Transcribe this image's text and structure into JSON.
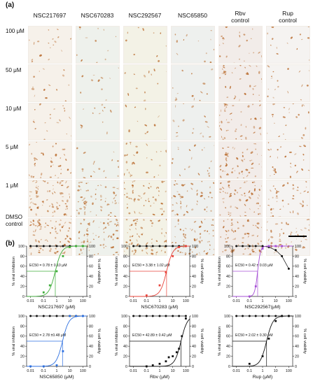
{
  "figure": {
    "panel_a_label": "(a)",
    "panel_b_label": "(b)",
    "columns": [
      {
        "label": "NSC217697",
        "line2": ""
      },
      {
        "label": "NSC670283",
        "line2": ""
      },
      {
        "label": "NSC292567",
        "line2": ""
      },
      {
        "label": "NSC65850",
        "line2": ""
      },
      {
        "label": "Rbv",
        "line2": "control"
      },
      {
        "label": "Rup",
        "line2": "control"
      }
    ],
    "rows": [
      {
        "label": "100 μM",
        "line2": ""
      },
      {
        "label": "50 μM",
        "line2": ""
      },
      {
        "label": "10 μM",
        "line2": ""
      },
      {
        "label": "5 μM",
        "line2": ""
      },
      {
        "label": "1 μM",
        "line2": ""
      },
      {
        "label": "DMSO",
        "line2": "control"
      }
    ],
    "cell_density": [
      [
        0.15,
        0.08,
        0.05,
        0.08,
        0.25,
        0.12
      ],
      [
        0.12,
        0.05,
        0.08,
        0.1,
        0.4,
        0.18
      ],
      [
        0.2,
        0.12,
        0.08,
        0.15,
        0.55,
        0.25
      ],
      [
        0.45,
        0.15,
        0.3,
        0.2,
        0.65,
        0.35
      ],
      [
        0.95,
        0.8,
        0.7,
        0.6,
        0.8,
        0.55
      ],
      [
        1.0,
        0.9,
        0.85,
        0.85,
        0.9,
        0.6
      ]
    ],
    "colors": {
      "cell_stain": "#b8692a",
      "background_tint": "#f3ece4",
      "green": "#3fae3a",
      "red": "#e8433a",
      "purple": "#a64fd6",
      "blue": "#2c6fe0",
      "black": "#111111"
    }
  },
  "chart_data": [
    {
      "type": "scatter",
      "xlabel": "NSC217697 (μM)",
      "ylabel": "% viral inhibition",
      "y2label": "% cell viability",
      "x_scale": "log",
      "xticks": [
        "0.01",
        "0.1",
        "1",
        "10",
        "100"
      ],
      "yticks": [
        "0",
        "20",
        "40",
        "60",
        "80",
        "100"
      ],
      "ylim": [
        0,
        100
      ],
      "annotation": "EC50 = 0.78 ± 0.10 μM",
      "color": "#3fae3a",
      "ec50": 0.78,
      "inhibition": {
        "x": [
          0.1,
          0.3,
          1,
          3,
          10,
          30,
          100
        ],
        "y": [
          8,
          22,
          50,
          80,
          98,
          100,
          100
        ]
      },
      "viability": {
        "x": [
          0.01,
          0.03,
          0.1,
          0.3,
          1,
          3,
          10,
          30,
          100
        ],
        "y": [
          100,
          100,
          100,
          100,
          100,
          100,
          100,
          100,
          100
        ]
      }
    },
    {
      "type": "scatter",
      "xlabel": "NSC670283 (μM)",
      "ylabel": "% viral inhibition",
      "y2label": "% cell viability",
      "x_scale": "log",
      "xticks": [
        "0.01",
        "0.1",
        "1",
        "10",
        "100"
      ],
      "yticks": [
        "0",
        "20",
        "40",
        "60",
        "80",
        "100"
      ],
      "ylim": [
        0,
        100
      ],
      "annotation": "EC50 = 3.38 ± 1.02 μM",
      "color": "#e8433a",
      "ec50": 3.38,
      "inhibition": {
        "x": [
          0.1,
          1,
          3,
          10,
          30,
          100
        ],
        "y": [
          2,
          22,
          48,
          80,
          98,
          100
        ]
      },
      "viability": {
        "x": [
          0.01,
          0.03,
          0.1,
          0.3,
          1,
          3,
          10,
          30,
          100
        ],
        "y": [
          100,
          100,
          100,
          100,
          100,
          100,
          100,
          100,
          100
        ]
      }
    },
    {
      "type": "scatter",
      "xlabel": "NSC292567(μM)",
      "ylabel": "% viral inhibition",
      "y2label": "% cell viability",
      "x_scale": "log",
      "xticks": [
        "0.01",
        "0.1",
        "1",
        "10",
        "100"
      ],
      "yticks": [
        "0",
        "20",
        "40",
        "60",
        "80",
        "100"
      ],
      "ylim": [
        0,
        100
      ],
      "annotation": "EC50 = 0.42 ± 0.03 μM",
      "color": "#a64fd6",
      "ec50": 0.42,
      "inhibition": {
        "x": [
          0.1,
          0.3,
          1,
          3,
          10,
          30
        ],
        "y": [
          0,
          20,
          95,
          100,
          100,
          100
        ]
      },
      "viability": {
        "x": [
          0.01,
          0.03,
          0.1,
          0.3,
          1,
          3,
          10,
          30,
          100
        ],
        "y": [
          100,
          100,
          100,
          100,
          100,
          98,
          92,
          80,
          55
        ]
      }
    },
    {
      "type": "scatter",
      "xlabel": "NSC65850 (μM)",
      "ylabel": "% viral inhibition",
      "y2label": "% cell viability",
      "x_scale": "log",
      "xticks": [
        "0.01",
        "0.1",
        "1",
        "10",
        "100"
      ],
      "yticks": [
        "0",
        "20",
        "40",
        "60",
        "80",
        "100"
      ],
      "ylim": [
        0,
        100
      ],
      "annotation": "EC50 = 2.78 ±0.48 μM",
      "color": "#2c6fe0",
      "ec50": 2.78,
      "inhibition": {
        "x": [
          0.01,
          0.1,
          1,
          3,
          10,
          30,
          100
        ],
        "y": [
          0,
          0,
          2,
          30,
          100,
          100,
          100
        ]
      },
      "viability": {
        "x": [
          0.01,
          0.03,
          0.1,
          0.3,
          1,
          3,
          10,
          30,
          100
        ],
        "y": [
          100,
          100,
          100,
          100,
          100,
          100,
          100,
          100,
          100
        ]
      }
    },
    {
      "type": "scatter",
      "xlabel": "Rbv (μM)",
      "ylabel": "% viral inhibition",
      "y2label": "% cell viability",
      "x_scale": "log",
      "xticks": [
        "0.01",
        "0.1",
        "1",
        "10",
        "100"
      ],
      "yticks": [
        "0",
        "20",
        "40",
        "60",
        "80",
        "100"
      ],
      "ylim": [
        0,
        100
      ],
      "annotation": "EC50 = 42.89 ± 0.42 μM",
      "color": "#111111",
      "ec50": 42.89,
      "inhibition": {
        "x": [
          0.1,
          0.3,
          1,
          3,
          5,
          10,
          20,
          30,
          50,
          100
        ],
        "y": [
          0,
          2,
          5,
          10,
          18,
          20,
          28,
          35,
          60,
          95
        ]
      },
      "viability": {
        "x": [
          0.01,
          0.03,
          0.1,
          0.3,
          1,
          3,
          10,
          30,
          100
        ],
        "y": [
          100,
          100,
          100,
          100,
          100,
          100,
          100,
          100,
          100
        ]
      }
    },
    {
      "type": "scatter",
      "xlabel": "Rup (μM)",
      "ylabel": "% viral inhibition",
      "y2label": "% cell viability",
      "x_scale": "log",
      "xticks": [
        "0.01",
        "0.1",
        "1",
        "10",
        "100"
      ],
      "yticks": [
        "0",
        "20",
        "40",
        "60",
        "80",
        "100"
      ],
      "ylim": [
        0,
        100
      ],
      "annotation": "EC50 = 2.02 ± 0.30 μM",
      "color": "#111111",
      "ec50": 2.02,
      "inhibition": {
        "x": [
          0.1,
          1,
          3,
          10,
          30,
          100
        ],
        "y": [
          5,
          20,
          55,
          90,
          100,
          100
        ]
      },
      "viability": {
        "x": [
          0.01,
          0.03,
          0.1,
          0.3,
          1,
          3,
          10,
          30,
          100
        ],
        "y": [
          100,
          100,
          100,
          100,
          100,
          100,
          100,
          100,
          100
        ]
      }
    }
  ]
}
